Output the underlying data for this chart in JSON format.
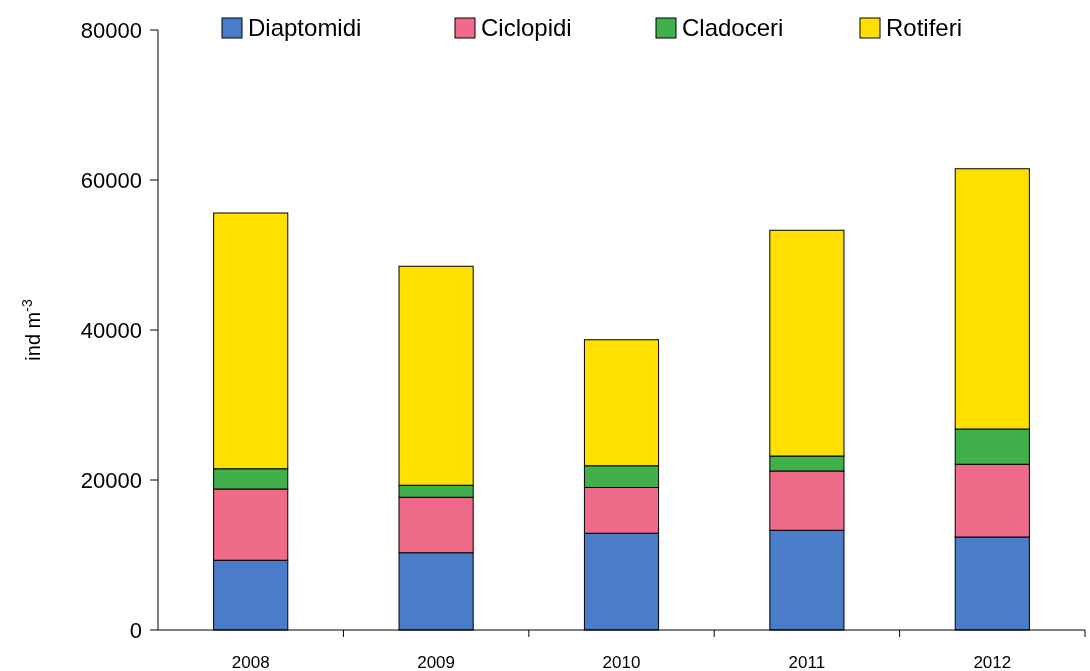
{
  "chart_data": {
    "type": "bar",
    "stacked": true,
    "ylabel": "ind m$^{-3}$",
    "categories": [
      "2008",
      "2009",
      "2010",
      "2011",
      "2012"
    ],
    "series": [
      {
        "name": "Diaptomidi",
        "color": "#4a7cc9",
        "values": [
          9300,
          10300,
          12900,
          13300,
          12400
        ]
      },
      {
        "name": "Ciclopidi",
        "color": "#f06a8a",
        "values": [
          9500,
          7400,
          6100,
          7900,
          9700
        ]
      },
      {
        "name": "Cladoceri",
        "color": "#3fb04a",
        "values": [
          2700,
          1600,
          2900,
          2000,
          4700
        ]
      },
      {
        "name": "Rotiferi",
        "color": "#ffe000",
        "values": [
          34100,
          29200,
          16800,
          30100,
          34700
        ]
      }
    ],
    "ylim": [
      0,
      80000
    ],
    "yticks": [
      0,
      20000,
      40000,
      60000,
      80000
    ],
    "grid": false,
    "legend": "top"
  }
}
